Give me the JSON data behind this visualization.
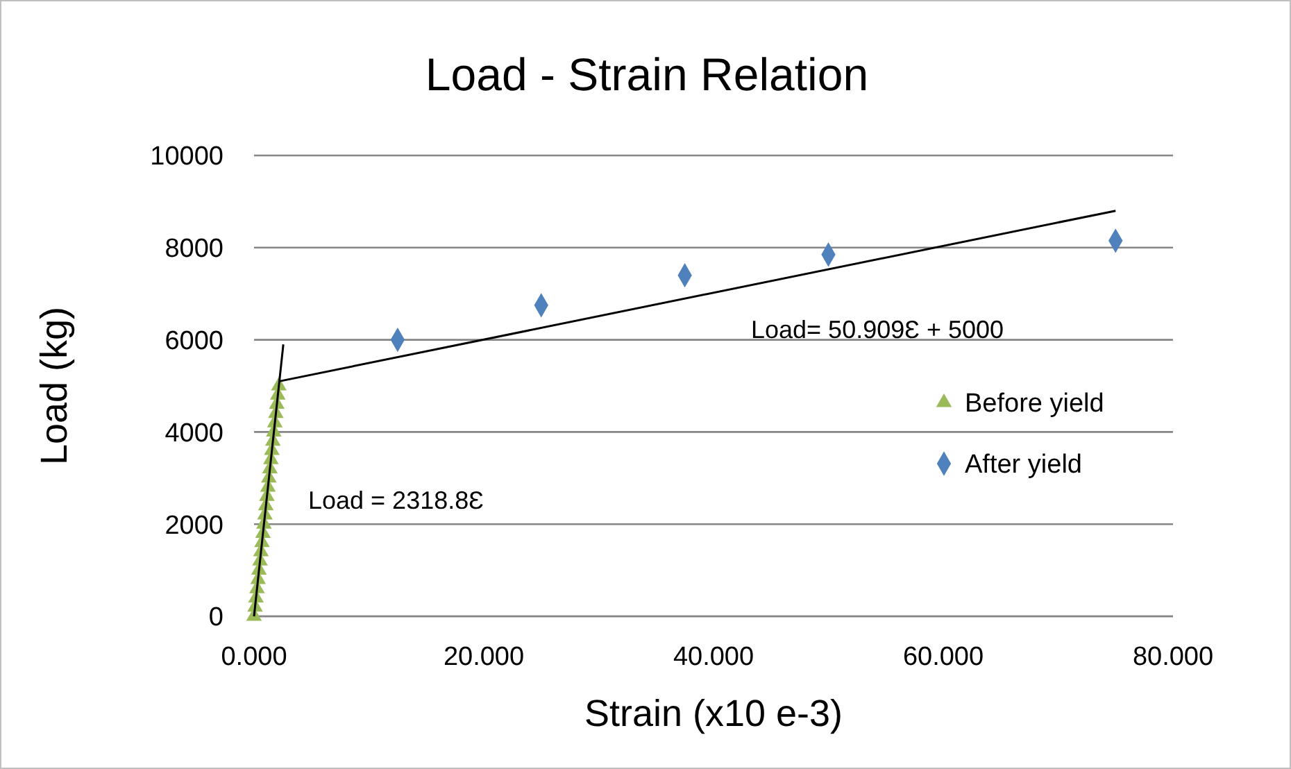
{
  "chart_data": {
    "type": "scatter",
    "title": "Load - Strain Relation",
    "xlabel": "Strain (x10 e-3)",
    "ylabel": "Load (kg)",
    "xlim": [
      0,
      80
    ],
    "xticks": [
      {
        "value": 0,
        "label": "0.000"
      },
      {
        "value": 20,
        "label": "20.000"
      },
      {
        "value": 40,
        "label": "40.000"
      },
      {
        "value": 60,
        "label": "60.000"
      },
      {
        "value": 80,
        "label": "80.000"
      }
    ],
    "ylim": [
      0,
      10000
    ],
    "yticks": [
      0,
      2000,
      4000,
      6000,
      8000,
      10000
    ],
    "grid": "y",
    "legend": "right",
    "series": [
      {
        "name": "Before yield",
        "marker": "triangle",
        "color": "#9bbb59",
        "x": [
          0,
          0.09,
          0.17,
          0.26,
          0.35,
          0.43,
          0.52,
          0.6,
          0.69,
          0.78,
          0.86,
          0.95,
          1.03,
          1.12,
          1.21,
          1.29,
          1.38,
          1.47,
          1.55,
          1.64,
          1.72,
          1.81,
          1.9,
          1.98,
          2.07,
          2.16
        ],
        "values": [
          0,
          200,
          400,
          600,
          800,
          1000,
          1200,
          1400,
          1600,
          1800,
          2000,
          2200,
          2400,
          2600,
          2800,
          3000,
          3200,
          3400,
          3600,
          3800,
          4000,
          4200,
          4400,
          4600,
          4800,
          5000
        ]
      },
      {
        "name": "After yield",
        "marker": "diamond",
        "color": "#4f81bd",
        "x": [
          12.5,
          25,
          37.5,
          50,
          75
        ],
        "values": [
          6000,
          6750,
          7400,
          7850,
          8150
        ]
      },
      {
        "type": "line",
        "color": "#000000",
        "marker": "none",
        "x": [
          0,
          2.55
        ],
        "values": [
          0,
          5900
        ]
      },
      {
        "type": "line",
        "color": "#000000",
        "marker": "none",
        "x": [
          2.2,
          75
        ],
        "values": [
          5100,
          8800
        ]
      }
    ],
    "annotations": [
      "Load = 2318.8Ɛ",
      "Load= 50.909Ɛ + 5000"
    ]
  }
}
